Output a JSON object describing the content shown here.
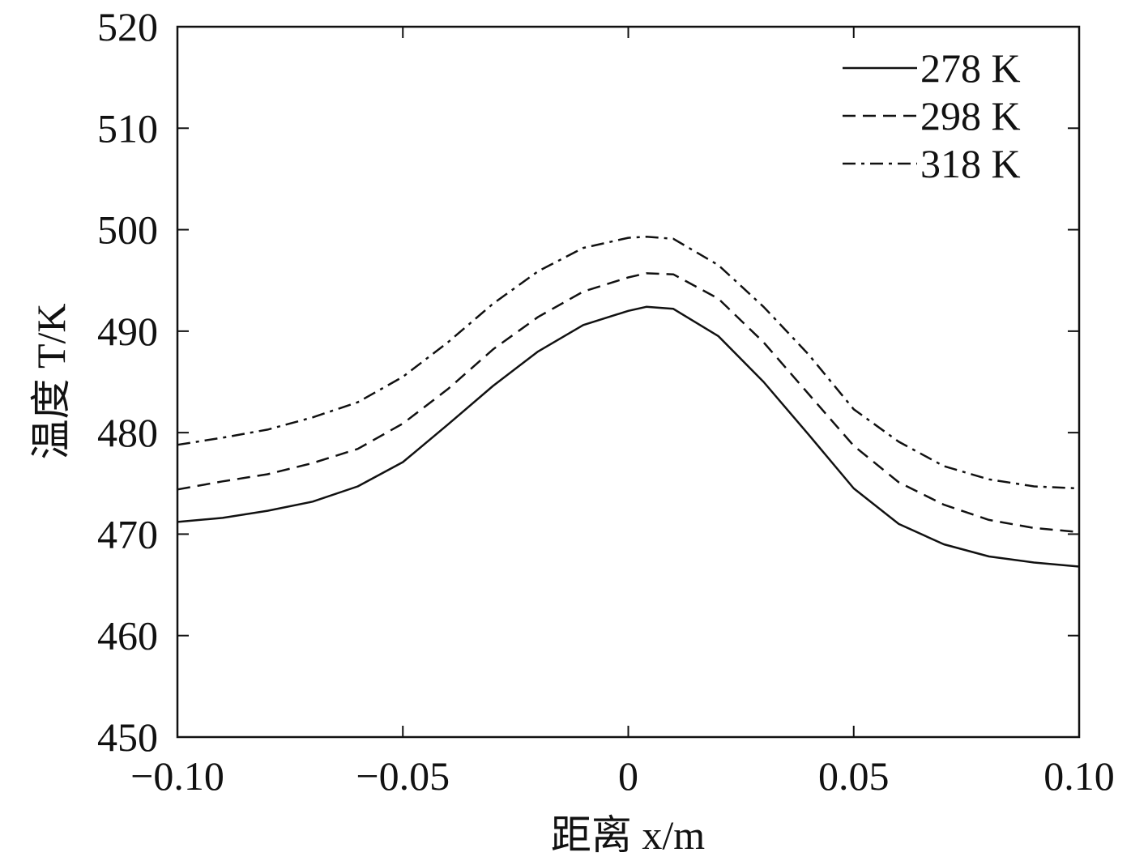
{
  "chart_data": {
    "type": "line",
    "title": "",
    "xlabel": "距离 x/m",
    "ylabel": "温度 T/K",
    "xlim": [
      -0.1,
      0.1
    ],
    "ylim": [
      450,
      520
    ],
    "xticks": [
      -0.1,
      -0.05,
      0,
      0.05,
      0.1
    ],
    "xtick_labels": [
      "−0.10",
      "−0.05",
      "0",
      "0.05",
      "0.10"
    ],
    "yticks": [
      450,
      460,
      470,
      480,
      490,
      500,
      510,
      520
    ],
    "ytick_labels": [
      "450",
      "460",
      "470",
      "480",
      "490",
      "500",
      "510",
      "520"
    ],
    "grid": false,
    "legend_position": "top-right",
    "x": [
      -0.1,
      -0.09,
      -0.08,
      -0.07,
      -0.06,
      -0.05,
      -0.04,
      -0.03,
      -0.02,
      -0.01,
      0,
      0.004,
      0.01,
      0.02,
      0.03,
      0.04,
      0.05,
      0.06,
      0.07,
      0.08,
      0.09,
      0.1
    ],
    "series": [
      {
        "name": "278 K",
        "style": "solid",
        "values": [
          471.2,
          471.6,
          472.3,
          473.2,
          474.7,
          477.1,
          480.8,
          484.6,
          488.0,
          490.6,
          492.0,
          492.4,
          492.2,
          489.5,
          485.0,
          479.8,
          474.5,
          471.0,
          469.0,
          467.8,
          467.2,
          466.8
        ]
      },
      {
        "name": "298 K",
        "style": "dashed",
        "values": [
          474.4,
          475.2,
          475.9,
          477.0,
          478.4,
          480.9,
          484.3,
          488.2,
          491.4,
          493.9,
          495.3,
          495.7,
          495.6,
          493.2,
          488.9,
          483.8,
          478.7,
          475.1,
          472.9,
          471.4,
          470.6,
          470.2
        ]
      },
      {
        "name": "318 K",
        "style": "dashdot",
        "values": [
          478.8,
          479.5,
          480.3,
          481.5,
          483.0,
          485.5,
          488.9,
          492.7,
          495.9,
          498.2,
          499.2,
          499.3,
          499.1,
          496.5,
          492.4,
          487.7,
          482.3,
          479.1,
          476.7,
          475.4,
          474.7,
          474.5
        ]
      }
    ]
  }
}
